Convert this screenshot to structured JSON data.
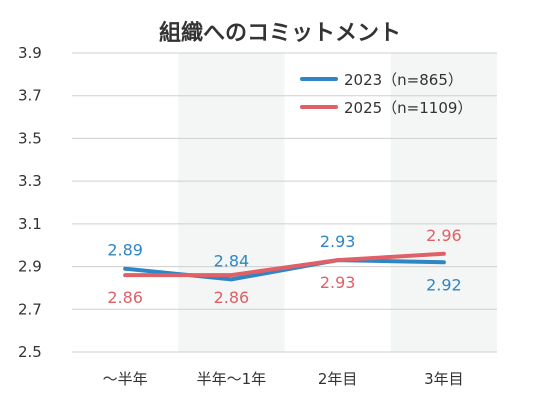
{
  "chart_data": {
    "type": "line",
    "title": "組織へのコミットメント",
    "categories": [
      "〜半年",
      "半年〜1年",
      "2年目",
      "3年目"
    ],
    "ylim": [
      2.5,
      3.9
    ],
    "yticks": [
      "3.9",
      "3.7",
      "3.5",
      "3.3",
      "3.1",
      "2.9",
      "2.7",
      "2.5"
    ],
    "grid": true,
    "legend_position": "top-right",
    "series": [
      {
        "name": "2023（n=865）",
        "color": "#2f86c5",
        "values": [
          2.89,
          2.84,
          2.93,
          2.92
        ],
        "labels": [
          "2.89",
          "2.84",
          "2.93",
          "2.92"
        ],
        "label_placement": [
          "above",
          "above",
          "above",
          "below"
        ]
      },
      {
        "name": "2025（n=1109）",
        "color": "#e06067",
        "values": [
          2.86,
          2.86,
          2.93,
          2.96
        ],
        "labels": [
          "2.86",
          "2.86",
          "2.93",
          "2.96"
        ],
        "label_placement": [
          "below",
          "below",
          "below",
          "above"
        ]
      }
    ]
  }
}
